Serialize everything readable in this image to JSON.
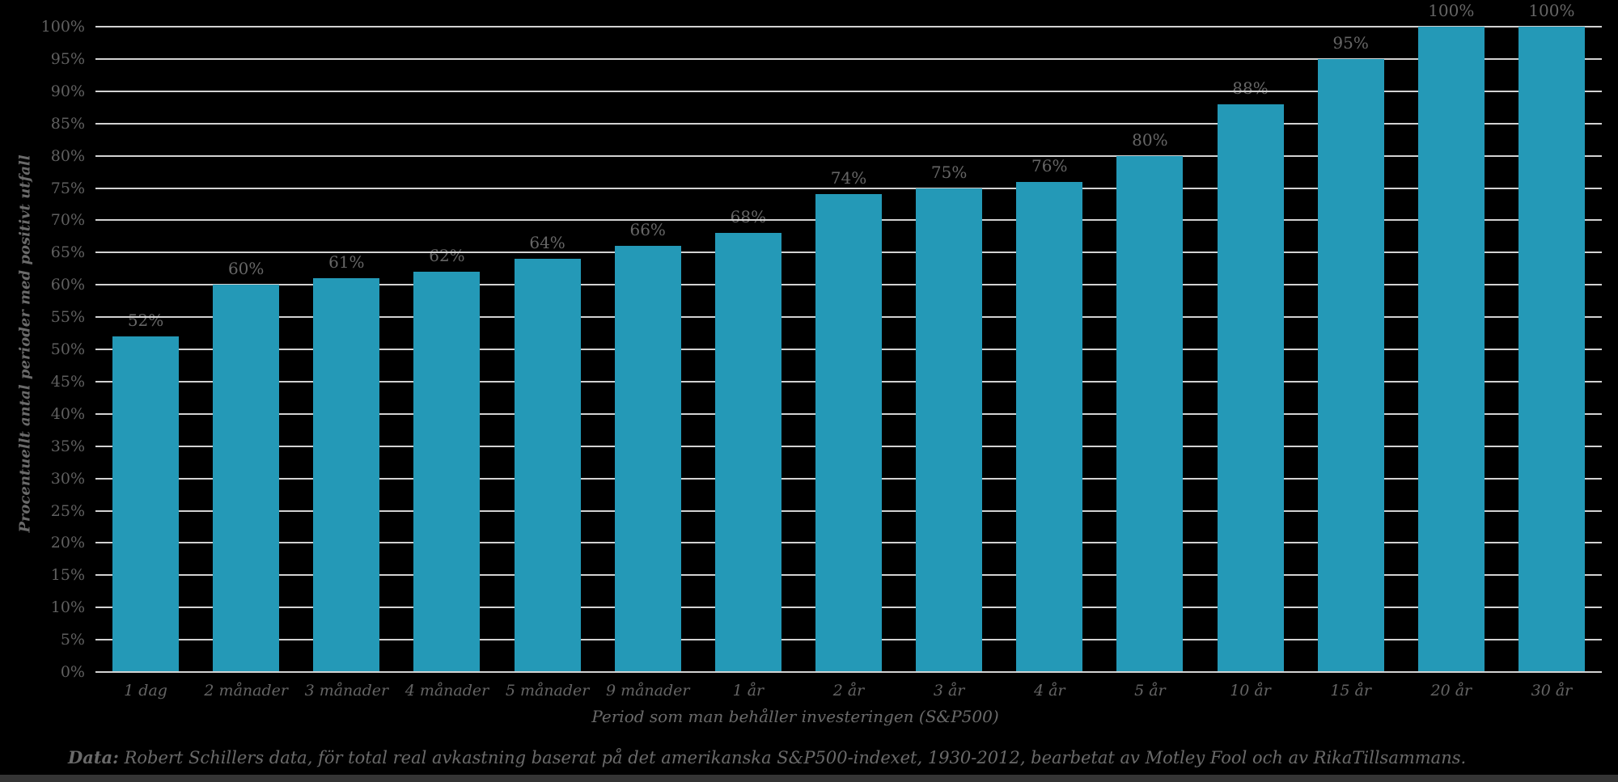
{
  "chart_data": {
    "type": "bar",
    "title": "",
    "xlabel": "Period som man behåller investeringen (S&P500)",
    "ylabel": "Procentuellt antal perioder med positivt utfall",
    "categories": [
      "1 dag",
      "2 månader",
      "3 månader",
      "4 månader",
      "5 månader",
      "9 månader",
      "1 år",
      "2 år",
      "3 år",
      "4 år",
      "5 år",
      "10 år",
      "15 år",
      "20 år",
      "30 år"
    ],
    "values": [
      52,
      60,
      61,
      62,
      64,
      66,
      68,
      74,
      75,
      76,
      80,
      88,
      95,
      100,
      100
    ],
    "value_labels": [
      "52%",
      "60%",
      "61%",
      "62%",
      "64%",
      "66%",
      "68%",
      "74%",
      "75%",
      "76%",
      "80%",
      "88%",
      "95%",
      "100%",
      "100%"
    ],
    "y_ticks": [
      "0%",
      "5%",
      "10%",
      "15%",
      "20%",
      "25%",
      "30%",
      "35%",
      "40%",
      "45%",
      "50%",
      "55%",
      "60%",
      "65%",
      "70%",
      "75%",
      "80%",
      "85%",
      "90%",
      "95%",
      "100%"
    ],
    "ylim": [
      0,
      100
    ],
    "grid": true,
    "legend": "none",
    "colors": {
      "bar": "#2499B7",
      "background": "#000000",
      "gridline": "#D2D2D2",
      "tick_label": "#606060",
      "value_label": "#666666",
      "title_text": "#6A6A6A"
    }
  },
  "footer": {
    "prefix": "Data:",
    "text": " Robert Schillers data, för  total real avkastning baserat på det amerikanska S&P500-indexet, 1930-2012, bearbetat av Motley Fool och av RikaTillsammans."
  }
}
